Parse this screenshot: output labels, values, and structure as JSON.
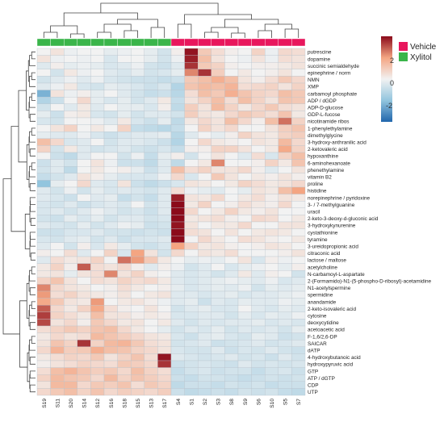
{
  "chart_data": {
    "type": "heatmap",
    "title": "",
    "xlabel": "",
    "ylabel": "",
    "columns": [
      "S19",
      "S11",
      "S20",
      "S14",
      "S12",
      "S16",
      "S18",
      "S15",
      "S13",
      "S17",
      "S4",
      "S1",
      "S2",
      "S3",
      "S8",
      "S9",
      "S6",
      "S10",
      "S5",
      "S7"
    ],
    "column_groups": [
      "Xylitol",
      "Xylitol",
      "Xylitol",
      "Xylitol",
      "Xylitol",
      "Xylitol",
      "Xylitol",
      "Xylitol",
      "Xylitol",
      "Xylitol",
      "Vehicle",
      "Vehicle",
      "Vehicle",
      "Vehicle",
      "Vehicle",
      "Vehicle",
      "Vehicle",
      "Vehicle",
      "Vehicle",
      "Vehicle"
    ],
    "rows": [
      "putrescine",
      "dopamine",
      "succinic semialdehyde",
      "epinephrine / norm",
      "NMN",
      "XMP",
      "carbamoyl phosphate",
      "ADP / dGDP",
      "ADP-D-glucose",
      "GDP-L-fucose",
      "nicotinamide ribos",
      "1-phenylethylamine",
      "dimethylglycine",
      "3-hydroxy-anthranilic acid",
      "2-ketovaleric acid",
      "hypoxanthine",
      "6-aminohexanoate",
      "phenethylamine",
      "vitamin B2",
      "proline",
      "histidine",
      "norepinephrine / pyridoxine",
      "3- / 7-methylguanine",
      "uracil",
      "2-keto-3-deoxy-d-gluconic acid",
      "3-hydroxykynurenine",
      "cystathionine",
      "tyramine",
      "3-ureidopropionic acid",
      "citraconic acid",
      "lactose / maltose",
      "acetylcholine",
      "N-carbamoyl-L-aspartate",
      "2-(Formamido)-N1-(5-phospho-D-ribosyl)-acetamidine",
      "N1-acetylspermine",
      "spermidine",
      "anandamide",
      "2-keto-isovaleric acid",
      "cytosine",
      "deoxycytidine",
      "acetoacetic acid",
      "F-1,6/2,6-DP",
      "SAICAR",
      "dATP",
      "4-hydroxybutanoic acid",
      "hydroxypyruvic acid",
      "GTP",
      "ATP / dGTP",
      "CDP",
      "UTP"
    ],
    "legend": {
      "groups": [
        {
          "name": "Vehicle",
          "color": "#e8175d"
        },
        {
          "name": "Xylitol",
          "color": "#3ab54a"
        }
      ],
      "scale_ticks": [
        "2",
        "0",
        "-2"
      ],
      "range": [
        -3,
        3
      ]
    },
    "colorscale": {
      "low": "#2166ac",
      "mid": "#f2f2f2",
      "high": "#8b0a1a"
    },
    "values": [
      [
        0.0,
        0.3,
        -0.1,
        0.0,
        0.0,
        -0.2,
        -0.1,
        0.0,
        -0.2,
        -0.5,
        0.1,
        2.9,
        0.8,
        0.4,
        0.1,
        0.0,
        0.6,
        -0.1,
        0.5,
        0.4
      ],
      [
        0.3,
        -0.1,
        0.0,
        -0.1,
        0.0,
        -0.4,
        0.0,
        0.0,
        -0.2,
        -0.5,
        -0.1,
        2.8,
        1.0,
        0.3,
        0.0,
        -0.1,
        0.3,
        -0.1,
        0.4,
        0.3
      ],
      [
        -0.3,
        0.1,
        -0.2,
        -0.1,
        -0.2,
        -0.4,
        -0.3,
        -0.1,
        -0.5,
        -0.6,
        -0.3,
        2.6,
        0.8,
        0.6,
        0.1,
        0.0,
        0.1,
        0.1,
        0.2,
        0.3
      ],
      [
        0.0,
        -0.5,
        0.2,
        -0.1,
        0.0,
        -0.3,
        -0.4,
        -0.2,
        -0.5,
        -0.4,
        -0.2,
        1.8,
        2.6,
        0.7,
        0.0,
        0.2,
        0.0,
        0.1,
        0.3,
        0.0
      ],
      [
        -0.5,
        -0.3,
        -0.1,
        -0.3,
        -0.1,
        -0.4,
        -0.5,
        -0.6,
        -0.6,
        -0.7,
        -0.6,
        0.8,
        1.0,
        1.3,
        1.0,
        0.3,
        0.1,
        0.4,
        0.8,
        0.5
      ],
      [
        -0.3,
        -0.1,
        0.2,
        -0.4,
        -0.5,
        -0.2,
        -0.3,
        -0.4,
        -0.6,
        -0.4,
        -1.0,
        0.9,
        1.1,
        1.0,
        1.2,
        0.4,
        0.5,
        0.6,
        0.3,
        0.6
      ],
      [
        -1.8,
        0.3,
        -0.1,
        0.1,
        -0.2,
        0.0,
        -0.3,
        -0.5,
        -0.7,
        -0.6,
        -0.9,
        0.4,
        1.0,
        0.8,
        1.3,
        0.9,
        0.6,
        0.5,
        1.0,
        0.8
      ],
      [
        -1.0,
        -0.6,
        0.0,
        0.5,
        -0.2,
        -0.4,
        -0.2,
        -0.5,
        -0.3,
        0.2,
        -0.7,
        0.3,
        0.6,
        1.0,
        0.4,
        1.0,
        0.6,
        0.3,
        0.9,
        0.8
      ],
      [
        -0.5,
        0.0,
        -0.3,
        0.2,
        -0.3,
        0.0,
        -0.2,
        -0.2,
        -0.4,
        0.1,
        -0.8,
        0.7,
        0.3,
        1.1,
        0.6,
        0.2,
        0.5,
        0.8,
        0.4,
        0.3
      ],
      [
        -0.2,
        -0.6,
        0.1,
        0.2,
        -0.4,
        -0.5,
        -0.2,
        -0.5,
        -0.3,
        -0.3,
        -0.5,
        0.7,
        0.3,
        0.2,
        0.5,
        0.8,
        0.6,
        0.4,
        0.9,
        0.2
      ],
      [
        -0.4,
        -0.5,
        0.0,
        0.0,
        -0.1,
        -0.3,
        0.2,
        -0.4,
        -0.6,
        -0.2,
        -0.8,
        0.2,
        0.5,
        0.3,
        1.0,
        0.5,
        0.1,
        1.0,
        2.0,
        0.6
      ],
      [
        0.0,
        0.3,
        0.6,
        0.0,
        0.2,
        0.0,
        0.6,
        -0.7,
        -0.8,
        -0.9,
        -0.7,
        0.0,
        0.6,
        0.3,
        0.5,
        0.0,
        0.0,
        0.3,
        0.7,
        0.9
      ],
      [
        -0.2,
        -0.3,
        -0.3,
        -0.1,
        -0.4,
        -0.6,
        -0.4,
        -0.3,
        -0.3,
        -0.2,
        -0.9,
        -0.3,
        0.0,
        -0.2,
        0.1,
        0.6,
        0.3,
        0.2,
        0.6,
        0.7
      ],
      [
        1.0,
        0.5,
        -0.4,
        -0.3,
        0.0,
        -0.5,
        -0.3,
        -0.3,
        -0.4,
        -0.6,
        -1.0,
        0.0,
        0.5,
        0.2,
        0.1,
        0.0,
        0.3,
        0.2,
        1.1,
        0.5
      ],
      [
        0.6,
        -0.5,
        0.2,
        -0.3,
        -0.5,
        -0.4,
        -0.3,
        -0.5,
        -0.6,
        -0.4,
        -0.7,
        0.1,
        0.1,
        0.6,
        0.6,
        0.3,
        0.0,
        0.2,
        1.4,
        0.6
      ],
      [
        0.0,
        -0.6,
        -0.8,
        -0.3,
        0.0,
        0.0,
        -0.5,
        -0.1,
        -0.7,
        -0.2,
        0.1,
        -0.5,
        0.0,
        0.3,
        0.0,
        -0.3,
        0.4,
        -0.4,
        0.6,
        1.0
      ],
      [
        -0.6,
        -0.3,
        -0.5,
        0.0,
        0.3,
        -0.1,
        -0.6,
        -0.6,
        -0.8,
        -0.3,
        -0.8,
        0.0,
        0.2,
        1.8,
        0.0,
        0.0,
        0.1,
        0.6,
        0.2,
        0.9
      ],
      [
        -0.5,
        -0.3,
        -0.8,
        0.0,
        0.2,
        0.0,
        0.1,
        -0.2,
        -0.6,
        -0.3,
        1.0,
        0.4,
        0.6,
        0.3,
        0.3,
        0.5,
        0.1,
        -0.3,
        0.0,
        0.3
      ],
      [
        -0.7,
        -0.5,
        -0.3,
        0.3,
        0.1,
        -0.2,
        -0.4,
        -0.4,
        -0.4,
        -0.1,
        0.5,
        -0.4,
        0.0,
        0.8,
        0.3,
        0.0,
        0.2,
        0.1,
        0.3,
        0.1
      ],
      [
        -1.5,
        -0.2,
        0.0,
        0.5,
        -0.3,
        -0.4,
        0.3,
        -0.6,
        -0.8,
        -0.6,
        -0.4,
        0.3,
        0.2,
        0.0,
        0.2,
        0.6,
        0.4,
        0.2,
        0.3,
        0.5
      ],
      [
        -0.3,
        -0.5,
        -0.1,
        -0.5,
        -0.2,
        -0.4,
        -0.3,
        -0.4,
        -0.5,
        -0.3,
        0.4,
        -0.1,
        -0.2,
        -0.3,
        0.0,
        -0.2,
        0.3,
        0.2,
        1.0,
        1.5
      ],
      [
        -0.3,
        -0.4,
        -0.6,
        0.0,
        -0.3,
        -0.2,
        -0.7,
        -0.5,
        -0.7,
        -0.3,
        2.8,
        0.3,
        0.2,
        0.5,
        0.0,
        0.2,
        0.4,
        0.1,
        0.3,
        0.2
      ],
      [
        -0.4,
        -0.5,
        -0.3,
        -0.6,
        -0.4,
        -0.3,
        -0.4,
        0.0,
        -0.5,
        -0.3,
        3.0,
        0.2,
        0.6,
        0.0,
        0.1,
        0.4,
        0.2,
        0.1,
        0.5,
        0.0
      ],
      [
        -0.4,
        -0.3,
        -0.5,
        -0.3,
        -0.1,
        -0.3,
        -0.5,
        -0.4,
        -0.6,
        -0.3,
        3.0,
        0.5,
        0.0,
        0.2,
        0.6,
        0.2,
        0.1,
        0.3,
        0.0,
        0.0
      ],
      [
        -0.5,
        -0.6,
        -0.2,
        -0.4,
        -0.2,
        -0.5,
        -0.3,
        -0.3,
        -0.5,
        -0.4,
        3.0,
        0.2,
        0.3,
        0.4,
        0.1,
        0.0,
        0.5,
        0.4,
        0.0,
        0.2
      ],
      [
        -0.3,
        -0.4,
        -0.5,
        -0.2,
        -0.5,
        -0.3,
        -0.1,
        -0.2,
        -0.6,
        -0.5,
        2.9,
        0.3,
        0.0,
        0.2,
        0.2,
        0.5,
        0.0,
        0.0,
        0.3,
        0.3
      ],
      [
        -0.6,
        -0.6,
        -0.4,
        -0.4,
        -0.3,
        -0.5,
        -0.5,
        -0.6,
        -0.5,
        -0.6,
        3.0,
        0.4,
        0.3,
        0.0,
        0.3,
        0.0,
        0.2,
        0.3,
        0.2,
        0.0
      ],
      [
        -0.4,
        -0.5,
        -0.3,
        -0.2,
        -0.5,
        -0.3,
        -0.6,
        -0.4,
        -0.4,
        -0.3,
        3.0,
        0.0,
        0.5,
        0.2,
        0.0,
        0.4,
        0.3,
        0.1,
        0.0,
        0.2
      ],
      [
        -0.3,
        0.0,
        -0.5,
        0.1,
        -0.4,
        0.2,
        -0.2,
        -0.5,
        -0.6,
        -0.4,
        1.5,
        0.6,
        0.2,
        0.3,
        0.1,
        0.0,
        0.1,
        0.3,
        0.2,
        0.0
      ],
      [
        0.1,
        0.0,
        0.4,
        -0.3,
        0.0,
        0.6,
        -0.4,
        1.5,
        0.3,
        -0.5,
        0.5,
        0.0,
        0.3,
        0.2,
        0.4,
        0.0,
        0.0,
        0.0,
        0.1,
        0.3
      ],
      [
        -0.3,
        0.4,
        0.2,
        0.3,
        0.6,
        0.0,
        2.0,
        1.6,
        0.8,
        0.2,
        0.0,
        -0.2,
        -0.1,
        -0.2,
        0.0,
        0.3,
        -0.4,
        0.1,
        -0.1,
        0.0
      ],
      [
        0.2,
        0.6,
        0.1,
        2.2,
        0.4,
        0.3,
        0.5,
        0.1,
        -0.3,
        0.1,
        -0.1,
        -0.5,
        -0.3,
        0.0,
        -0.4,
        -0.2,
        -0.1,
        0.0,
        -0.2,
        0.1
      ],
      [
        0.2,
        0.3,
        -0.2,
        0.3,
        0.4,
        1.8,
        0.3,
        0.6,
        0.1,
        0.0,
        -0.3,
        -0.4,
        -0.3,
        -0.5,
        -0.3,
        0.2,
        -0.3,
        0.1,
        0.0,
        -0.5
      ],
      [
        0.6,
        0.9,
        0.3,
        0.0,
        0.4,
        0.3,
        0.6,
        0.4,
        0.5,
        0.2,
        -0.3,
        -0.4,
        -0.3,
        -0.2,
        -0.1,
        -0.2,
        -0.3,
        -0.1,
        -0.4,
        -0.3
      ],
      [
        1.8,
        0.5,
        0.3,
        0.2,
        0.0,
        0.1,
        0.4,
        0.2,
        0.0,
        0.1,
        -0.2,
        -0.4,
        -0.3,
        -0.2,
        -0.3,
        -0.1,
        -0.5,
        -0.2,
        -0.3,
        -0.2
      ],
      [
        1.6,
        0.4,
        0.6,
        0.3,
        0.2,
        0.1,
        0.3,
        0.0,
        0.2,
        0.3,
        -0.3,
        -0.3,
        -0.4,
        -0.3,
        -0.2,
        -0.4,
        -0.3,
        -0.3,
        -0.2,
        -0.1
      ],
      [
        1.4,
        0.8,
        0.3,
        0.2,
        1.6,
        0.0,
        0.2,
        0.3,
        0.1,
        -0.1,
        -0.3,
        -0.2,
        -0.6,
        -0.3,
        -0.4,
        -0.2,
        -0.3,
        -0.3,
        -0.1,
        -0.2
      ],
      [
        2.2,
        0.5,
        0.2,
        0.6,
        1.4,
        0.4,
        0.1,
        0.0,
        0.3,
        0.0,
        -0.5,
        -0.3,
        -0.2,
        -0.4,
        -0.4,
        0.0,
        -0.3,
        -0.4,
        -0.2,
        -0.3
      ],
      [
        2.5,
        0.6,
        0.4,
        0.2,
        1.0,
        0.3,
        0.3,
        0.1,
        0.2,
        0.1,
        -0.4,
        -0.4,
        -0.3,
        -0.3,
        -0.5,
        -0.2,
        -0.4,
        -0.2,
        -0.3,
        -0.1
      ],
      [
        2.4,
        0.3,
        0.5,
        0.1,
        0.8,
        0.5,
        0.2,
        0.3,
        0.0,
        0.2,
        -0.3,
        -0.5,
        -0.3,
        -0.4,
        -0.3,
        -0.3,
        -0.2,
        -0.4,
        -0.3,
        -0.4
      ],
      [
        0.4,
        0.6,
        0.8,
        0.6,
        0.9,
        1.0,
        0.5,
        0.2,
        0.0,
        -0.2,
        -0.5,
        -0.3,
        -0.4,
        -0.2,
        -0.5,
        -0.3,
        -0.4,
        -0.3,
        -0.5,
        -0.2
      ],
      [
        0.2,
        0.5,
        0.3,
        0.4,
        1.1,
        0.9,
        0.7,
        0.5,
        0.3,
        0.2,
        -0.4,
        -0.6,
        -0.3,
        -0.2,
        -0.4,
        -0.5,
        -0.2,
        -0.3,
        -0.6,
        -0.5
      ],
      [
        0.3,
        0.9,
        0.6,
        2.6,
        0.6,
        1.1,
        1.2,
        0.8,
        0.4,
        0.3,
        -0.5,
        -0.4,
        -0.3,
        -0.6,
        -0.5,
        -0.4,
        -0.3,
        -0.5,
        -0.4,
        -0.3
      ],
      [
        0.5,
        1.2,
        0.7,
        0.8,
        1.3,
        1.0,
        0.9,
        0.6,
        0.5,
        0.3,
        -0.4,
        -0.5,
        -0.5,
        -0.3,
        -0.6,
        -0.4,
        -0.5,
        -0.3,
        -0.5,
        -0.6
      ],
      [
        0.2,
        0.4,
        0.6,
        0.5,
        0.8,
        0.3,
        0.6,
        0.9,
        0.4,
        2.9,
        -0.3,
        -0.4,
        -0.5,
        -0.4,
        -0.3,
        -0.5,
        -0.4,
        -0.6,
        -0.3,
        -0.5
      ],
      [
        0.1,
        0.3,
        0.4,
        0.6,
        0.5,
        0.4,
        0.8,
        0.7,
        0.5,
        2.6,
        -0.6,
        -0.5,
        -0.4,
        -0.5,
        -0.6,
        -0.3,
        -0.5,
        -0.4,
        -0.5,
        -0.4
      ],
      [
        0.4,
        1.0,
        1.2,
        0.9,
        0.7,
        0.8,
        0.5,
        1.0,
        0.6,
        0.4,
        -0.7,
        -0.5,
        -0.4,
        -0.6,
        -0.5,
        -0.5,
        -0.7,
        -0.5,
        -0.4,
        -0.6
      ],
      [
        0.6,
        1.1,
        0.9,
        0.8,
        0.5,
        1.1,
        0.6,
        0.9,
        0.7,
        0.5,
        -0.6,
        -0.7,
        -0.5,
        -0.5,
        -0.6,
        -0.7,
        -0.6,
        -0.5,
        -0.6,
        -0.5
      ],
      [
        0.3,
        1.1,
        1.1,
        0.5,
        0.8,
        0.7,
        0.9,
        0.4,
        0.8,
        0.6,
        -0.8,
        -0.6,
        -0.6,
        -0.7,
        -0.5,
        -0.6,
        -0.5,
        -0.7,
        -0.6,
        -0.6
      ],
      [
        0.5,
        0.8,
        1.0,
        0.6,
        0.9,
        0.5,
        0.7,
        0.6,
        0.5,
        0.7,
        -0.6,
        -0.8,
        -0.7,
        -0.6,
        -0.7,
        -0.5,
        -0.6,
        -0.5,
        -0.7,
        -0.8
      ]
    ]
  }
}
